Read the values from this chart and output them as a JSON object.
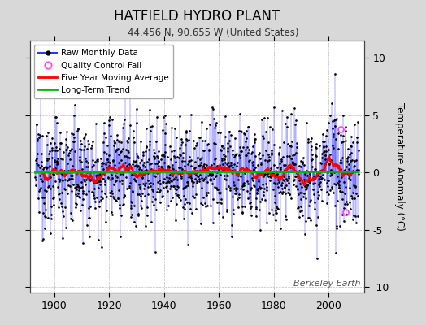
{
  "title": "HATFIELD HYDRO PLANT",
  "subtitle": "44.456 N, 90.655 W (United States)",
  "ylabel": "Temperature Anomaly (°C)",
  "attribution": "Berkeley Earth",
  "year_start": 1893,
  "year_end": 2011,
  "ylim": [
    -10.5,
    11.5
  ],
  "yticks": [
    -10,
    -5,
    0,
    5,
    10
  ],
  "bg_color": "#d8d8d8",
  "plot_bg_color": "#ffffff",
  "raw_line_color": "#3333ff",
  "raw_marker_color": "#000000",
  "moving_avg_color": "#ff0000",
  "trend_color": "#00bb00",
  "qc_fail_color": "#ff44ff",
  "seed": 12345,
  "n_months": 1404,
  "moving_avg_window": 60,
  "trend_slope": 0.001,
  "xlim_start": 1891,
  "xlim_end": 2013
}
